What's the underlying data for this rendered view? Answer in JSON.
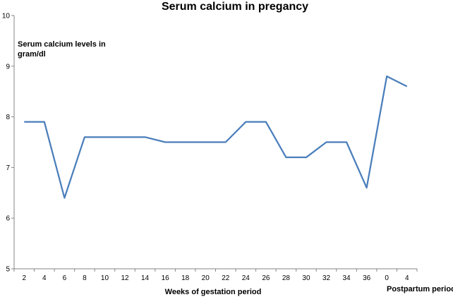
{
  "chart_data": {
    "type": "line",
    "title": "Serum calcium in pregancy",
    "ylabel_line1": "Serum calcium levels in",
    "ylabel_line2": "gram/dl",
    "xlabel": "Weeks of gestation period",
    "xlabel_secondary": "Postpartum period",
    "categories": [
      "2",
      "4",
      "6",
      "8",
      "10",
      "12",
      "14",
      "16",
      "18",
      "20",
      "22",
      "24",
      "26",
      "28",
      "30",
      "32",
      "34",
      "36",
      "0",
      "4"
    ],
    "series": [
      {
        "values": [
          7.9,
          7.9,
          6.4,
          7.6,
          7.6,
          7.6,
          7.6,
          7.5,
          7.5,
          7.5,
          7.5,
          7.9,
          7.9,
          7.2,
          7.2,
          7.5,
          7.5,
          6.6,
          8.8,
          8.6
        ],
        "color": "#4a7ebb"
      }
    ],
    "ylim": [
      5,
      10
    ],
    "yticks": [
      5,
      6,
      7,
      8,
      9,
      10
    ],
    "grid": false,
    "legend": "none"
  }
}
